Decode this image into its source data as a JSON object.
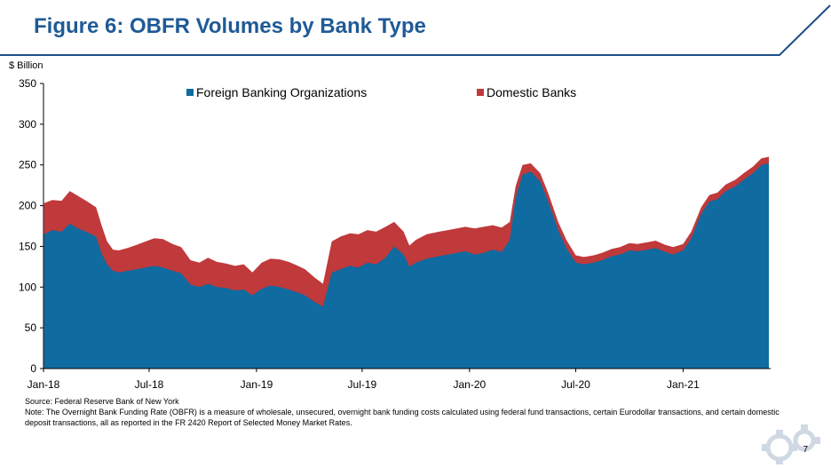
{
  "slide": {
    "title": "Figure 6: OBFR Volumes by Bank Type",
    "page_number": "7",
    "source": "Source: Federal Reserve Bank of New York",
    "note": "Note: The Overnight Bank Funding Rate (OBFR) is a measure of wholesale, unsecured, overnight bank funding costs calculated using federal fund transactions, certain Eurodollar transactions, and certain domestic deposit transactions, all as reported in the FR 2420 Report of Selected Money Market Rates."
  },
  "colors": {
    "title": "#1f5a96",
    "foreign": "#0f6ba0",
    "domestic": "#c0393b",
    "frame": "#1f4e8a"
  },
  "icons": {
    "logo": "gear-icon"
  },
  "chart_data": {
    "type": "area",
    "stacked": true,
    "unit_label": "$ Billion",
    "ylim": [
      0,
      350
    ],
    "y_ticks": [
      0,
      50,
      100,
      150,
      200,
      250,
      300,
      350
    ],
    "x_range": [
      "2018-01-01",
      "2021-05-31"
    ],
    "x_tick_labels": [
      {
        "date": "2018-01-01",
        "label": "Jan-18"
      },
      {
        "date": "2018-07-01",
        "label": "Jul-18"
      },
      {
        "date": "2019-01-01",
        "label": "Jan-19"
      },
      {
        "date": "2019-07-01",
        "label": "Jul-19"
      },
      {
        "date": "2020-01-01",
        "label": "Jan-20"
      },
      {
        "date": "2020-07-01",
        "label": "Jul-20"
      },
      {
        "date": "2021-01-01",
        "label": "Jan-21"
      }
    ],
    "legend_position": "top",
    "grid": false,
    "series": [
      {
        "name": "Foreign Banking Organizations",
        "key": "foreign",
        "points": [
          [
            "2018-01-02",
            165
          ],
          [
            "2018-01-16",
            170
          ],
          [
            "2018-02-01",
            168
          ],
          [
            "2018-02-15",
            178
          ],
          [
            "2018-03-01",
            172
          ],
          [
            "2018-03-15",
            168
          ],
          [
            "2018-04-01",
            162
          ],
          [
            "2018-04-10",
            142
          ],
          [
            "2018-04-20",
            128
          ],
          [
            "2018-04-30",
            120
          ],
          [
            "2018-05-10",
            118
          ],
          [
            "2018-05-25",
            120
          ],
          [
            "2018-06-10",
            122
          ],
          [
            "2018-06-25",
            124
          ],
          [
            "2018-07-10",
            126
          ],
          [
            "2018-07-25",
            124
          ],
          [
            "2018-08-10",
            120
          ],
          [
            "2018-08-25",
            117
          ],
          [
            "2018-09-10",
            103
          ],
          [
            "2018-09-25",
            100
          ],
          [
            "2018-10-10",
            104
          ],
          [
            "2018-10-25",
            100
          ],
          [
            "2018-11-10",
            99
          ],
          [
            "2018-11-25",
            96
          ],
          [
            "2018-12-10",
            97
          ],
          [
            "2018-12-25",
            90
          ],
          [
            "2019-01-10",
            98
          ],
          [
            "2019-01-25",
            102
          ],
          [
            "2019-02-10",
            100
          ],
          [
            "2019-02-25",
            97
          ],
          [
            "2019-03-10",
            94
          ],
          [
            "2019-03-25",
            90
          ],
          [
            "2019-04-10",
            82
          ],
          [
            "2019-04-25",
            76
          ],
          [
            "2019-05-10",
            118
          ],
          [
            "2019-05-25",
            122
          ],
          [
            "2019-06-10",
            126
          ],
          [
            "2019-06-25",
            124
          ],
          [
            "2019-07-10",
            130
          ],
          [
            "2019-07-25",
            128
          ],
          [
            "2019-08-10",
            136
          ],
          [
            "2019-08-25",
            150
          ],
          [
            "2019-09-10",
            140
          ],
          [
            "2019-09-20",
            125
          ],
          [
            "2019-10-01",
            130
          ],
          [
            "2019-10-20",
            135
          ],
          [
            "2019-11-10",
            138
          ],
          [
            "2019-11-25",
            140
          ],
          [
            "2019-12-10",
            142
          ],
          [
            "2019-12-25",
            144
          ],
          [
            "2020-01-10",
            140
          ],
          [
            "2020-01-25",
            142
          ],
          [
            "2020-02-10",
            146
          ],
          [
            "2020-02-25",
            143
          ],
          [
            "2020-03-10",
            158
          ],
          [
            "2020-03-20",
            210
          ],
          [
            "2020-04-01",
            238
          ],
          [
            "2020-04-15",
            242
          ],
          [
            "2020-05-01",
            230
          ],
          [
            "2020-05-15",
            205
          ],
          [
            "2020-06-01",
            170
          ],
          [
            "2020-06-15",
            148
          ],
          [
            "2020-07-01",
            130
          ],
          [
            "2020-07-15",
            128
          ],
          [
            "2020-08-01",
            130
          ],
          [
            "2020-08-15",
            133
          ],
          [
            "2020-09-01",
            138
          ],
          [
            "2020-09-15",
            140
          ],
          [
            "2020-10-01",
            145
          ],
          [
            "2020-10-15",
            144
          ],
          [
            "2020-11-01",
            146
          ],
          [
            "2020-11-15",
            148
          ],
          [
            "2020-12-01",
            143
          ],
          [
            "2020-12-15",
            140
          ],
          [
            "2021-01-01",
            145
          ],
          [
            "2021-01-15",
            160
          ],
          [
            "2021-02-01",
            190
          ],
          [
            "2021-02-15",
            205
          ],
          [
            "2021-03-01",
            208
          ],
          [
            "2021-03-15",
            218
          ],
          [
            "2021-04-01",
            224
          ],
          [
            "2021-04-15",
            232
          ],
          [
            "2021-05-01",
            240
          ],
          [
            "2021-05-15",
            250
          ],
          [
            "2021-05-28",
            252
          ]
        ]
      },
      {
        "name": "Domestic Banks",
        "key": "domestic",
        "points": [
          [
            "2018-01-02",
            38
          ],
          [
            "2018-01-16",
            37
          ],
          [
            "2018-02-01",
            38
          ],
          [
            "2018-02-15",
            40
          ],
          [
            "2018-03-01",
            40
          ],
          [
            "2018-03-15",
            38
          ],
          [
            "2018-04-01",
            36
          ],
          [
            "2018-04-10",
            35
          ],
          [
            "2018-04-20",
            28
          ],
          [
            "2018-04-30",
            26
          ],
          [
            "2018-05-10",
            27
          ],
          [
            "2018-05-25",
            28
          ],
          [
            "2018-06-10",
            30
          ],
          [
            "2018-06-25",
            32
          ],
          [
            "2018-07-10",
            34
          ],
          [
            "2018-07-25",
            35
          ],
          [
            "2018-08-10",
            33
          ],
          [
            "2018-08-25",
            32
          ],
          [
            "2018-09-10",
            30
          ],
          [
            "2018-09-25",
            30
          ],
          [
            "2018-10-10",
            32
          ],
          [
            "2018-10-25",
            31
          ],
          [
            "2018-11-10",
            30
          ],
          [
            "2018-11-25",
            30
          ],
          [
            "2018-12-10",
            31
          ],
          [
            "2018-12-25",
            28
          ],
          [
            "2019-01-10",
            32
          ],
          [
            "2019-01-25",
            33
          ],
          [
            "2019-02-10",
            34
          ],
          [
            "2019-02-25",
            34
          ],
          [
            "2019-03-10",
            33
          ],
          [
            "2019-03-25",
            32
          ],
          [
            "2019-04-10",
            30
          ],
          [
            "2019-04-25",
            28
          ],
          [
            "2019-05-10",
            38
          ],
          [
            "2019-05-25",
            40
          ],
          [
            "2019-06-10",
            40
          ],
          [
            "2019-06-25",
            41
          ],
          [
            "2019-07-10",
            40
          ],
          [
            "2019-07-25",
            40
          ],
          [
            "2019-08-10",
            38
          ],
          [
            "2019-08-25",
            30
          ],
          [
            "2019-09-10",
            28
          ],
          [
            "2019-09-20",
            26
          ],
          [
            "2019-10-01",
            28
          ],
          [
            "2019-10-20",
            30
          ],
          [
            "2019-11-10",
            30
          ],
          [
            "2019-11-25",
            30
          ],
          [
            "2019-12-10",
            30
          ],
          [
            "2019-12-25",
            30
          ],
          [
            "2020-01-10",
            32
          ],
          [
            "2020-01-25",
            32
          ],
          [
            "2020-02-10",
            30
          ],
          [
            "2020-02-25",
            30
          ],
          [
            "2020-03-10",
            22
          ],
          [
            "2020-03-20",
            14
          ],
          [
            "2020-04-01",
            12
          ],
          [
            "2020-04-15",
            10
          ],
          [
            "2020-05-01",
            10
          ],
          [
            "2020-05-15",
            10
          ],
          [
            "2020-06-01",
            10
          ],
          [
            "2020-06-15",
            10
          ],
          [
            "2020-07-01",
            9
          ],
          [
            "2020-07-15",
            9
          ],
          [
            "2020-08-01",
            9
          ],
          [
            "2020-08-15",
            9
          ],
          [
            "2020-09-01",
            9
          ],
          [
            "2020-09-15",
            9
          ],
          [
            "2020-10-01",
            9
          ],
          [
            "2020-10-15",
            9
          ],
          [
            "2020-11-01",
            9
          ],
          [
            "2020-11-15",
            9
          ],
          [
            "2020-12-01",
            9
          ],
          [
            "2020-12-15",
            9
          ],
          [
            "2021-01-01",
            8
          ],
          [
            "2021-01-15",
            8
          ],
          [
            "2021-02-01",
            8
          ],
          [
            "2021-02-15",
            8
          ],
          [
            "2021-03-01",
            8
          ],
          [
            "2021-03-15",
            8
          ],
          [
            "2021-04-01",
            8
          ],
          [
            "2021-04-15",
            8
          ],
          [
            "2021-05-01",
            8
          ],
          [
            "2021-05-15",
            8
          ],
          [
            "2021-05-28",
            8
          ]
        ]
      }
    ]
  }
}
